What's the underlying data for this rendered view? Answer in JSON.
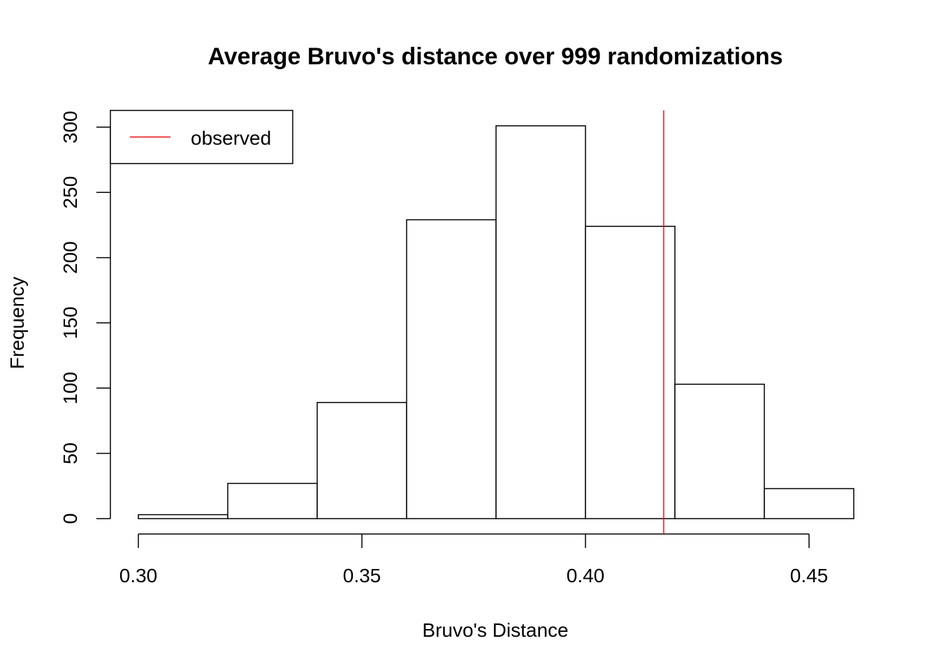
{
  "chart_data": {
    "type": "bar",
    "title": "Average Bruvo's distance over 999 randomizations",
    "xlabel": "Bruvo's Distance",
    "ylabel": "Frequency",
    "bins": [
      {
        "start": 0.3,
        "end": 0.32,
        "count": 3
      },
      {
        "start": 0.32,
        "end": 0.34,
        "count": 27
      },
      {
        "start": 0.34,
        "end": 0.36,
        "count": 89
      },
      {
        "start": 0.36,
        "end": 0.38,
        "count": 229
      },
      {
        "start": 0.38,
        "end": 0.4,
        "count": 301
      },
      {
        "start": 0.4,
        "end": 0.42,
        "count": 224
      },
      {
        "start": 0.42,
        "end": 0.44,
        "count": 103
      },
      {
        "start": 0.44,
        "end": 0.46,
        "count": 23
      }
    ],
    "observed": 0.4175,
    "observed_color": "#e8101a",
    "xticks": [
      "0.30",
      "0.35",
      "0.40",
      "0.45"
    ],
    "xtick_values": [
      0.3,
      0.35,
      0.4,
      0.45
    ],
    "yticks": [
      "0",
      "50",
      "100",
      "150",
      "200",
      "250",
      "300"
    ],
    "ytick_values": [
      0,
      50,
      100,
      150,
      200,
      250,
      300
    ],
    "xlim": [
      0.3,
      0.46
    ],
    "ylim": [
      0,
      301
    ],
    "legend": {
      "position": "top-left",
      "entries": [
        {
          "label": "observed",
          "color": "#e8101a"
        }
      ]
    }
  }
}
